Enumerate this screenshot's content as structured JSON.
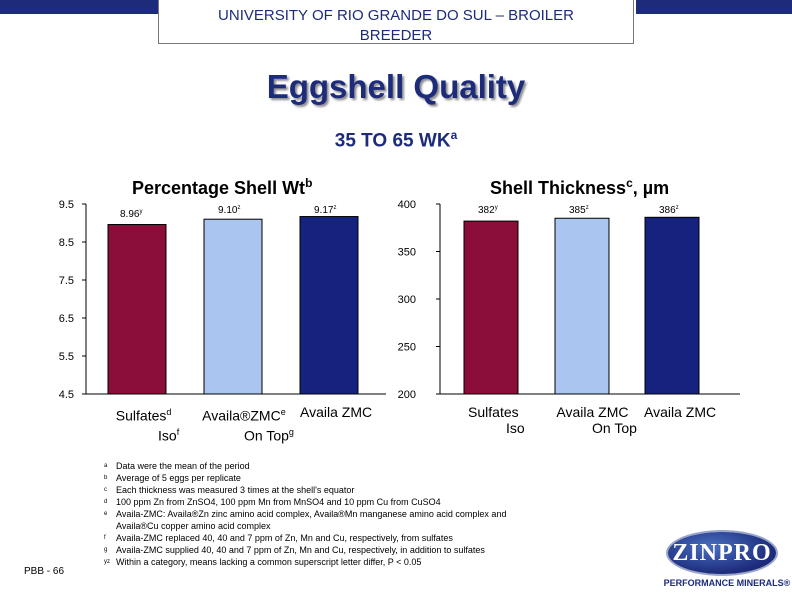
{
  "header": {
    "line1": "UNIVERSITY OF RIO GRANDE DO SUL – BROILER",
    "line2": "BREEDER"
  },
  "title": "Eggshell Quality",
  "subtitle": {
    "text": "35 TO 65 WK",
    "sup": "a"
  },
  "colors": {
    "sulfates": "#8b0d3a",
    "availa_zmc_on_top": "#a9c5f0",
    "availa_zmc": "#16237e",
    "brand": "#1c2b7a"
  },
  "chart_data": [
    {
      "type": "bar",
      "title": "Percentage Shell Wt",
      "title_sup": "b",
      "categories": [
        "Sulfates Iso",
        "Availa®ZMC On Top",
        "Availa ZMC"
      ],
      "values": [
        8.96,
        9.1,
        9.17
      ],
      "data_labels": [
        "8.96",
        "9.10",
        "9.17"
      ],
      "data_label_sups": [
        "y",
        "z",
        "z"
      ],
      "ylim": [
        4.5,
        9.5
      ],
      "yticks": [
        "9.5",
        "8.5",
        "7.5",
        "6.5",
        "5.5",
        "4.5"
      ],
      "grid": false,
      "xlabels": [
        {
          "line1": "Sulfates",
          "sup1": "d",
          "line2": "Iso",
          "sup2": "f"
        },
        {
          "line1": "Availa®ZMC",
          "sup1": "e",
          "line2": "On Top",
          "sup2": "g"
        },
        {
          "line1": "Availa ZMC",
          "sup1": "",
          "line2": "",
          "sup2": ""
        }
      ]
    },
    {
      "type": "bar",
      "title": "Shell Thickness",
      "title_sup": "c",
      "title_suffix": ", µm",
      "categories": [
        "Sulfates Iso",
        "Availa ZMC On Top",
        "Availa ZMC"
      ],
      "values": [
        382,
        385,
        386
      ],
      "data_labels": [
        "382",
        "385",
        "386"
      ],
      "data_label_sups": [
        "y",
        "z",
        "z"
      ],
      "ylim": [
        200,
        400
      ],
      "yticks": [
        "400",
        "350",
        "300",
        "250",
        "200"
      ],
      "grid": false,
      "xlabels": [
        {
          "line1": "Sulfates",
          "line2": "Iso"
        },
        {
          "line1": "Availa ZMC",
          "line2": "On Top"
        },
        {
          "line1": "Availa ZMC",
          "line2": ""
        }
      ]
    }
  ],
  "footnotes": [
    {
      "mark": "a",
      "text": "Data were the mean of the period"
    },
    {
      "mark": "b",
      "text": "Average of 5 eggs per replicate"
    },
    {
      "mark": "c",
      "text": "Each thickness was measured 3 times at the shell's equator"
    },
    {
      "mark": "d",
      "text": "100 ppm Zn from ZnSO4, 100 ppm Mn from MnSO4 and 10 ppm Cu from CuSO4"
    },
    {
      "mark": "e",
      "text": "Availa-ZMC: Availa®Zn zinc amino acid complex, Availa®Mn manganese amino acid complex and"
    },
    {
      "mark": "",
      "text": "Availa®Cu copper amino acid complex"
    },
    {
      "mark": "f",
      "text": "Availa-ZMC replaced 40, 40 and 7 ppm of Zn, Mn and Cu, respectively, from sulfates"
    },
    {
      "mark": "g",
      "text": "Availa-ZMC supplied 40, 40 and 7 ppm of Zn, Mn and Cu, respectively, in addition to sulfates"
    },
    {
      "mark": "yz",
      "text": "Within a category, means lacking a common superscript letter differ, P < 0.05"
    }
  ],
  "page_code": "PBB - 66",
  "logo": {
    "name": "ZINPRO",
    "tagline": "PERFORMANCE MINERALS®"
  }
}
